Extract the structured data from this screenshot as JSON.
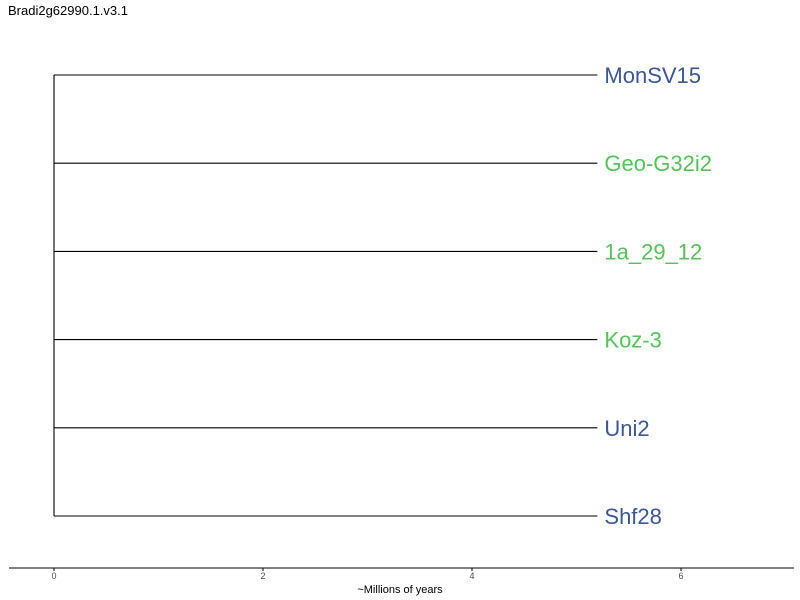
{
  "title": "Bradi2g62990.1.v3.1",
  "colors": {
    "group_a": "#3b5794",
    "group_b": "#55c35a",
    "branch": "#000000",
    "axis": "#000000"
  },
  "chart_data": {
    "type": "dendrogram",
    "xlabel": "~Millions of years",
    "xticks": [
      0,
      2,
      4,
      6
    ],
    "xlim": [
      -0.45,
      7.1
    ],
    "root_x": 0,
    "tips": [
      {
        "label": "MonSV15",
        "branch_end": 5.2,
        "color": "#3b5794"
      },
      {
        "label": "Geo-G32i2",
        "branch_end": 5.2,
        "color": "#55c35a"
      },
      {
        "label": "1a_29_12",
        "branch_end": 5.2,
        "color": "#55c35a"
      },
      {
        "label": "Koz-3",
        "branch_end": 5.2,
        "color": "#55c35a"
      },
      {
        "label": "Uni2",
        "branch_end": 5.2,
        "color": "#3b5794"
      },
      {
        "label": "Shf28",
        "branch_end": 5.2,
        "color": "#3b5794"
      }
    ]
  }
}
